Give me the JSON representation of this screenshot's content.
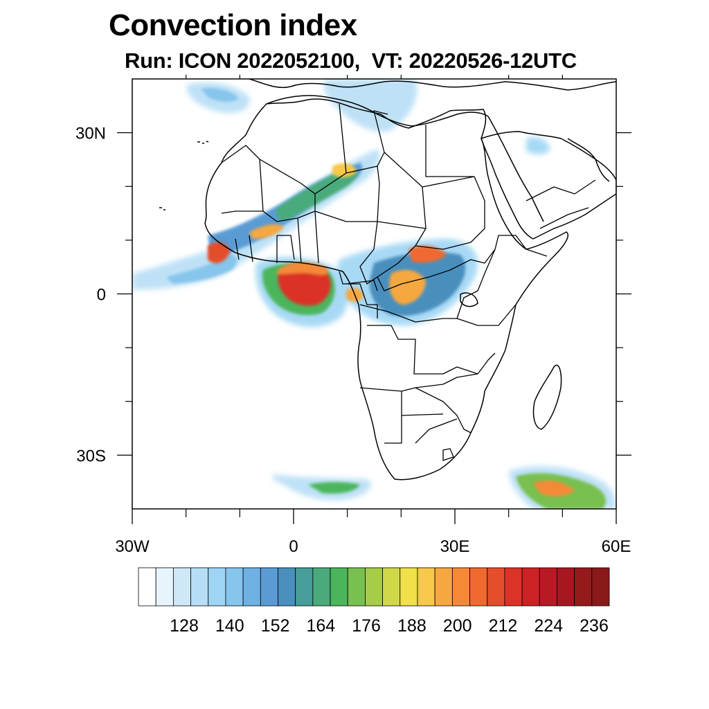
{
  "header": {
    "title": "Convection index",
    "subtitle": "Run: ICON 2022052100,  VT: 20220526-12UTC"
  },
  "map": {
    "projection": "cylindrical-equidistant",
    "lon_range": [
      -30,
      60
    ],
    "lat_range": [
      -40,
      40
    ],
    "lat_ticks": [
      {
        "value": 30,
        "label": "30N"
      },
      {
        "value": 0,
        "label": "0"
      },
      {
        "value": -30,
        "label": "30S"
      }
    ],
    "lon_ticks": [
      {
        "value": -30,
        "label": "30W"
      },
      {
        "value": 0,
        "label": "0"
      },
      {
        "value": 30,
        "label": "30E"
      },
      {
        "value": 60,
        "label": "60E"
      }
    ],
    "minor_lon_ticks": [
      -20,
      -10,
      10,
      20,
      40,
      50
    ],
    "minor_lat_ticks": [
      20,
      10,
      -10,
      -20
    ]
  },
  "colorbar": {
    "levels": [
      128,
      140,
      152,
      164,
      176,
      188,
      200,
      212,
      224,
      236
    ],
    "colors": [
      "#ffffff",
      "#e8f4fc",
      "#cfe8f8",
      "#b7def6",
      "#9ed5f4",
      "#86c5ec",
      "#6fb1e2",
      "#5a9bd4",
      "#4a8fbe",
      "#469d9a",
      "#4aaa7c",
      "#4cb55c",
      "#78c050",
      "#a6cc4a",
      "#d0d84a",
      "#f0e04a",
      "#f8c848",
      "#f6a840",
      "#f48a38",
      "#ee6a30",
      "#e44e2c",
      "#dc3228",
      "#cc2226",
      "#b81a24",
      "#a61820",
      "#941a1c",
      "#8a1a1a"
    ]
  }
}
